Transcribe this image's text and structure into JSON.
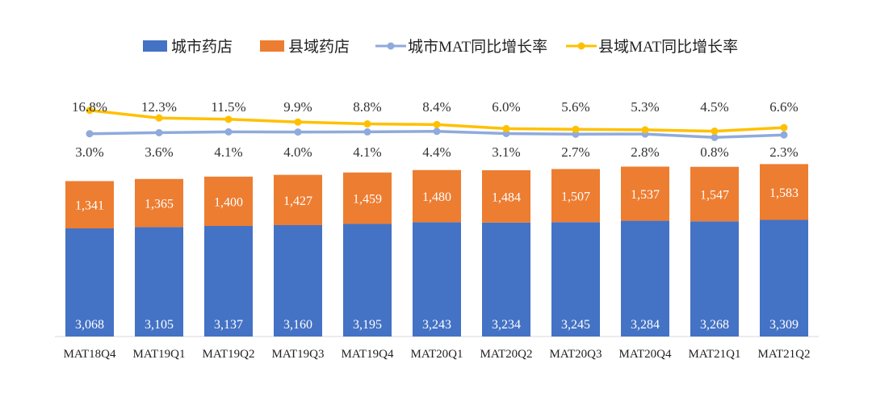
{
  "chart_data": {
    "type": "bar",
    "stacked": true,
    "categories": [
      "MAT18Q4",
      "MAT19Q1",
      "MAT19Q2",
      "MAT19Q3",
      "MAT19Q4",
      "MAT20Q1",
      "MAT20Q2",
      "MAT20Q3",
      "MAT20Q4",
      "MAT21Q1",
      "MAT21Q2"
    ],
    "series": [
      {
        "name": "城市药店",
        "kind": "bar",
        "color": "#4472C4",
        "values": [
          3068,
          3105,
          3137,
          3160,
          3195,
          3243,
          3234,
          3245,
          3284,
          3268,
          3309
        ]
      },
      {
        "name": "县域药店",
        "kind": "bar",
        "color": "#ED7D31",
        "values": [
          1341,
          1365,
          1400,
          1427,
          1459,
          1480,
          1484,
          1507,
          1537,
          1547,
          1583
        ]
      },
      {
        "name": "城市MAT同比增长率",
        "kind": "line",
        "color": "#8FAADC",
        "values": [
          3.0,
          3.6,
          4.1,
          4.0,
          4.1,
          4.4,
          3.1,
          2.7,
          2.8,
          0.8,
          2.3
        ],
        "labels": [
          "3.0%",
          "3.6%",
          "4.1%",
          "4.0%",
          "4.1%",
          "4.4%",
          "3.1%",
          "2.7%",
          "2.8%",
          "0.8%",
          "2.3%"
        ]
      },
      {
        "name": "县域MAT同比增长率",
        "kind": "line",
        "color": "#FFC000",
        "values": [
          16.8,
          12.3,
          11.5,
          9.9,
          8.8,
          8.4,
          6.0,
          5.6,
          5.3,
          4.5,
          6.6
        ],
        "labels": [
          "16.8%",
          "12.3%",
          "11.5%",
          "9.9%",
          "8.8%",
          "8.4%",
          "6.0%",
          "5.6%",
          "5.3%",
          "4.5%",
          "6.6%"
        ]
      }
    ],
    "bar_labels": {
      "城市药店": [
        "3,068",
        "3,105",
        "3,137",
        "3,160",
        "3,195",
        "3,243",
        "3,234",
        "3,245",
        "3,284",
        "3,268",
        "3,309"
      ],
      "县域药店": [
        "1,341",
        "1,365",
        "1,400",
        "1,427",
        "1,459",
        "1,480",
        "1,484",
        "1,507",
        "1,537",
        "1,547",
        "1,583"
      ]
    },
    "legend_position": "top",
    "grid": false,
    "title": "",
    "xlabel": "",
    "ylabel": ""
  }
}
